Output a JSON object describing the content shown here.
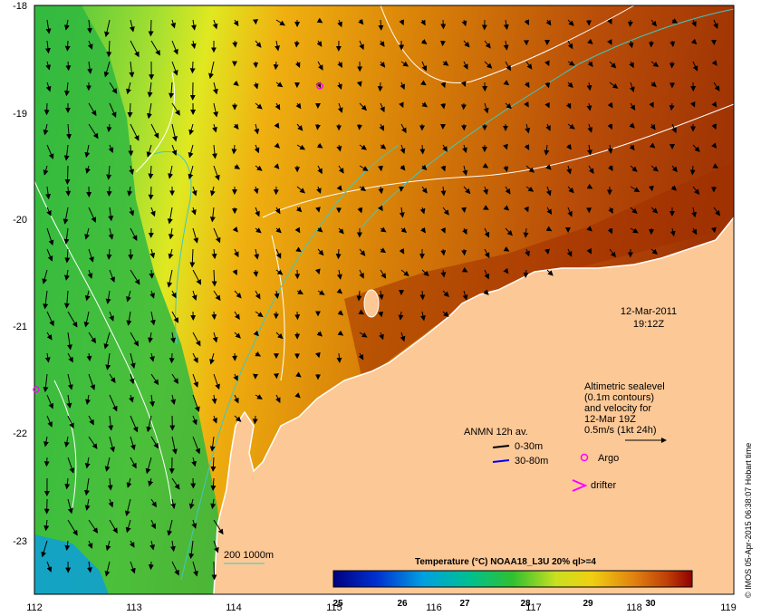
{
  "map": {
    "lon_ticks": [
      "112",
      "113",
      "114",
      "115",
      "116",
      "117",
      "118",
      "119"
    ],
    "lat_ticks": [
      "-18",
      "-19",
      "-20",
      "-21",
      "-22",
      "-23"
    ],
    "datetime_line1": "12-Mar-2011",
    "datetime_line2": "19:12Z",
    "altimetry_note": [
      "Altimetric sealevel",
      "(0.1m contours)",
      "and velocity for",
      "12-Mar 19Z",
      "0.5m/s (1kt 24h)"
    ],
    "anmn_title": "ANMN 12h av.",
    "anmn_shallow": "0-30m",
    "anmn_deep": "30-80m",
    "argo_label": "Argo",
    "drifter_label": "drifter",
    "bathy_label": "200  1000m",
    "credit": "© IMOS 05-Apr-2015 06:38:07 Hobart time"
  },
  "colorbar": {
    "title": "Temperature (°C) NOAA18_L3U 20% ql>=4",
    "ticks": [
      "25",
      "26",
      "27",
      "28",
      "29",
      "30"
    ]
  },
  "colors": {
    "land": "#fcc896",
    "coast": "#ffffff",
    "contour": "#ffffff",
    "bathy": "#40c8c0",
    "argo": "#ff00ff",
    "drifter": "#ff00ff",
    "deep_current": "#0000ff"
  }
}
